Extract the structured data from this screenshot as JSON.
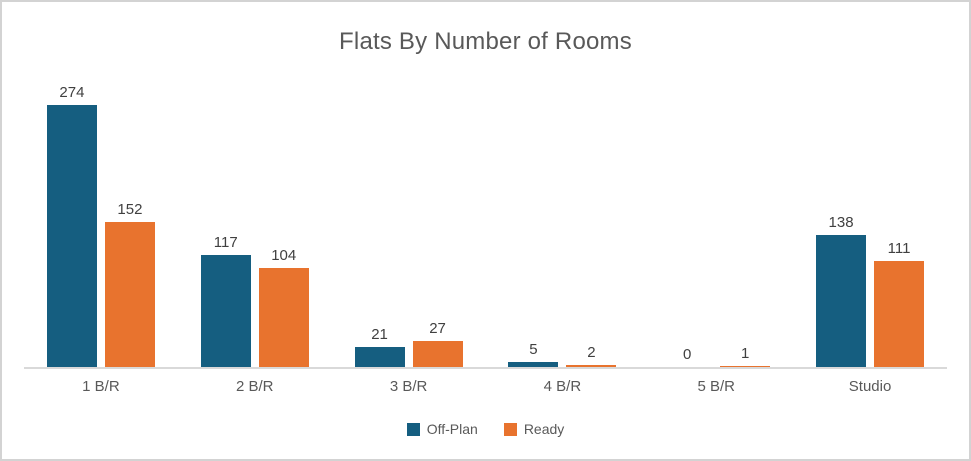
{
  "chart_data": {
    "type": "bar",
    "title": "Flats By Number of Rooms",
    "categories": [
      "1 B/R",
      "2 B/R",
      "3 B/R",
      "4 B/R",
      "5 B/R",
      "Studio"
    ],
    "series": [
      {
        "name": "Off-Plan",
        "color": "#155E80",
        "values": [
          274,
          117,
          21,
          5,
          0,
          138
        ]
      },
      {
        "name": "Ready",
        "color": "#E8732E",
        "values": [
          152,
          104,
          27,
          2,
          1,
          111
        ]
      }
    ],
    "xlabel": "",
    "ylabel": "",
    "ylim": [
      0,
      300
    ],
    "grid": false,
    "data_labels": true,
    "legend_position": "bottom"
  },
  "colors": {
    "off_plan": "#155E80",
    "ready": "#E8732E",
    "axis_line": "#d9d9d9",
    "title_text": "#595959",
    "value_label": "#404040",
    "category_label": "#595959",
    "frame_border": "#d3d3d3",
    "background": "#ffffff"
  }
}
